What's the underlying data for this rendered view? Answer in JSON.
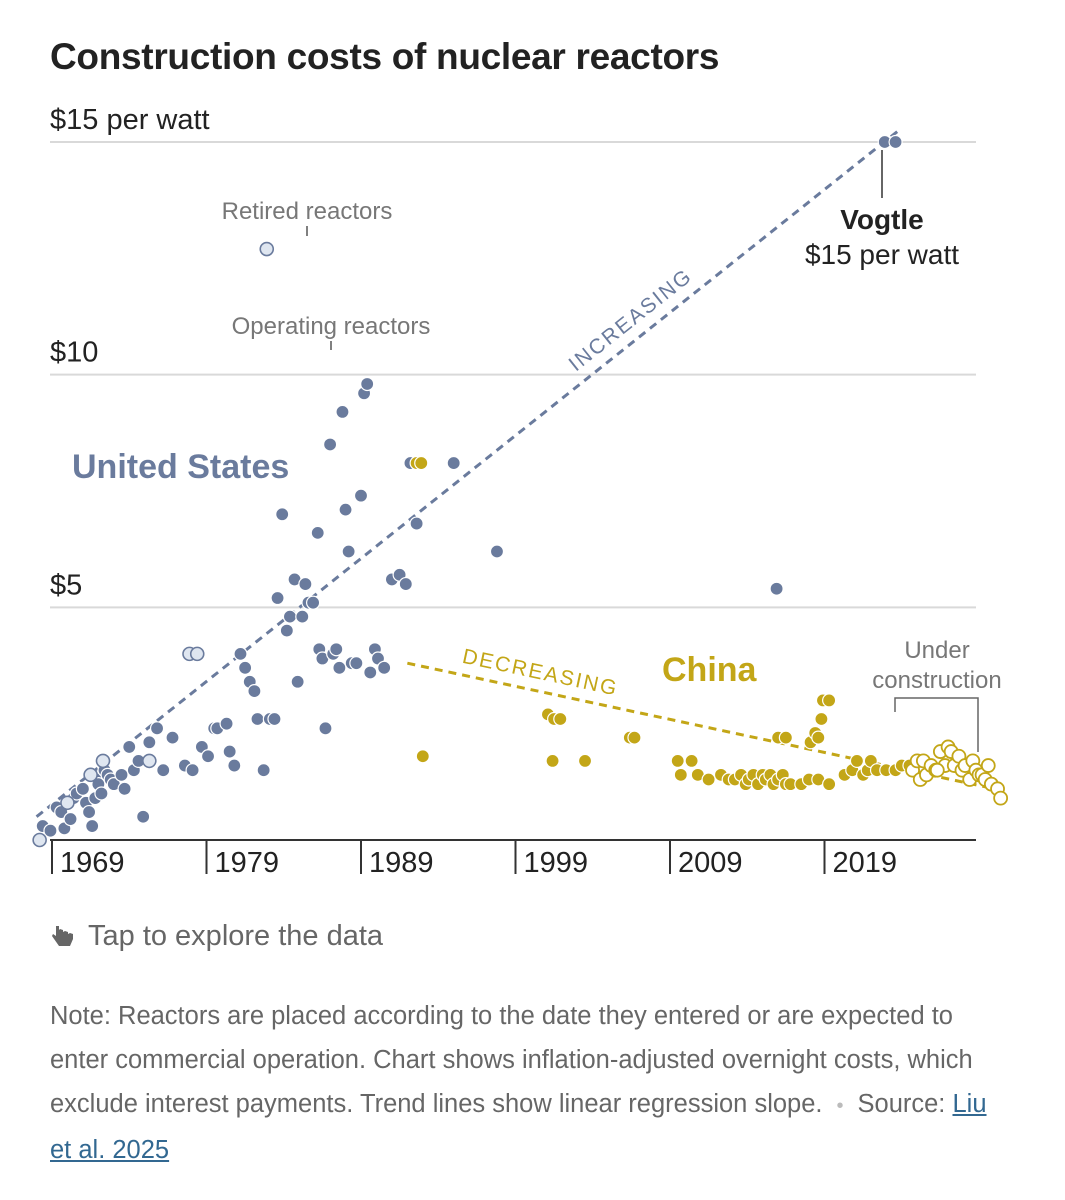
{
  "chart_data": {
    "type": "scatter",
    "title": "Construction costs of nuclear reactors",
    "xlim": [
      1966,
      2027
    ],
    "ylim": [
      0,
      15
    ],
    "x_ticks": [
      {
        "value": 1969,
        "label": "1969"
      },
      {
        "value": 1979,
        "label": "1979"
      },
      {
        "value": 1989,
        "label": "1989"
      },
      {
        "value": 1999,
        "label": "1999"
      },
      {
        "value": 2009,
        "label": "2009"
      },
      {
        "value": 2019,
        "label": "2019"
      }
    ],
    "y_ticks": [
      {
        "value": 15,
        "label": "$15 per watt"
      },
      {
        "value": 10,
        "label": "$10"
      },
      {
        "value": 5,
        "label": "$5"
      }
    ],
    "grid": true,
    "series": [
      {
        "name": "United States",
        "status": "operating",
        "color": "#6a7b9d",
        "points": [
          [
            1968.4,
            0.3
          ],
          [
            1968.9,
            0.2
          ],
          [
            1969.3,
            0.7
          ],
          [
            1969.6,
            0.6
          ],
          [
            1969.8,
            0.25
          ],
          [
            1970.2,
            0.45
          ],
          [
            1970.4,
            0.9
          ],
          [
            1970.6,
            1.0
          ],
          [
            1971.0,
            1.1
          ],
          [
            1971.2,
            0.8
          ],
          [
            1971.4,
            0.6
          ],
          [
            1971.6,
            0.3
          ],
          [
            1971.8,
            0.9
          ],
          [
            1971.9,
            1.3
          ],
          [
            1972.0,
            1.2
          ],
          [
            1972.2,
            1.0
          ],
          [
            1972.4,
            1.5
          ],
          [
            1972.6,
            1.4
          ],
          [
            1972.8,
            1.3
          ],
          [
            1973.0,
            1.2
          ],
          [
            1973.5,
            1.4
          ],
          [
            1973.7,
            1.1
          ],
          [
            1974.0,
            2.0
          ],
          [
            1974.3,
            1.5
          ],
          [
            1974.6,
            1.7
          ],
          [
            1974.9,
            0.5
          ],
          [
            1975.3,
            2.1
          ],
          [
            1975.8,
            2.4
          ],
          [
            1976.2,
            1.5
          ],
          [
            1976.8,
            2.2
          ],
          [
            1977.6,
            1.6
          ],
          [
            1978.1,
            1.5
          ],
          [
            1978.7,
            2.0
          ],
          [
            1979.1,
            1.8
          ],
          [
            1979.5,
            2.4
          ],
          [
            1979.7,
            2.4
          ],
          [
            1980.3,
            2.5
          ],
          [
            1980.5,
            1.9
          ],
          [
            1980.8,
            1.6
          ],
          [
            1981.2,
            4.0
          ],
          [
            1981.5,
            3.7
          ],
          [
            1981.8,
            3.4
          ],
          [
            1982.1,
            3.2
          ],
          [
            1982.3,
            2.6
          ],
          [
            1982.7,
            1.5
          ],
          [
            1983.1,
            2.6
          ],
          [
            1983.4,
            2.6
          ],
          [
            1983.6,
            5.2
          ],
          [
            1983.9,
            7.0
          ],
          [
            1984.2,
            4.5
          ],
          [
            1984.4,
            4.8
          ],
          [
            1984.7,
            5.6
          ],
          [
            1984.9,
            3.4
          ],
          [
            1985.2,
            4.8
          ],
          [
            1985.4,
            5.5
          ],
          [
            1985.6,
            5.1
          ],
          [
            1985.9,
            5.1
          ],
          [
            1986.2,
            6.6
          ],
          [
            1986.3,
            4.1
          ],
          [
            1986.5,
            3.9
          ],
          [
            1986.7,
            2.4
          ],
          [
            1987.0,
            8.5
          ],
          [
            1987.2,
            4.0
          ],
          [
            1987.4,
            4.1
          ],
          [
            1987.6,
            3.7
          ],
          [
            1987.8,
            9.2
          ],
          [
            1988.0,
            7.1
          ],
          [
            1988.2,
            6.2
          ],
          [
            1988.4,
            3.8
          ],
          [
            1988.7,
            3.8
          ],
          [
            1989.0,
            7.4
          ],
          [
            1989.2,
            9.6
          ],
          [
            1989.4,
            9.8
          ],
          [
            1989.6,
            3.6
          ],
          [
            1989.9,
            4.1
          ],
          [
            1990.1,
            3.9
          ],
          [
            1990.5,
            3.7
          ],
          [
            1991.0,
            5.6
          ],
          [
            1991.5,
            5.7
          ],
          [
            1991.9,
            5.5
          ],
          [
            1992.2,
            8.1
          ],
          [
            1992.6,
            6.8
          ],
          [
            1995.0,
            8.1
          ],
          [
            1997.8,
            6.2
          ],
          [
            2015.9,
            5.4
          ],
          [
            2022.9,
            15.0
          ],
          [
            2023.6,
            15.0
          ]
        ]
      },
      {
        "name": "",
        "status": "retired",
        "color": "#6a7b9d",
        "points": [
          [
            1968.2,
            0.0
          ],
          [
            1970.0,
            0.8
          ],
          [
            1971.5,
            1.4
          ],
          [
            1972.3,
            1.7
          ],
          [
            1975.3,
            1.7
          ],
          [
            1977.9,
            4.0
          ],
          [
            1978.4,
            4.0
          ],
          [
            1982.9,
            12.7
          ]
        ]
      },
      {
        "name": "China",
        "status": "operating",
        "color": "#c3a617",
        "points": [
          [
            1992.6,
            8.1
          ],
          [
            1992.9,
            8.1
          ],
          [
            1993.0,
            1.8
          ],
          [
            2001.1,
            2.7
          ],
          [
            2001.5,
            2.6
          ],
          [
            2001.9,
            2.6
          ],
          [
            2001.4,
            1.7
          ],
          [
            2003.5,
            1.7
          ],
          [
            2006.4,
            2.2
          ],
          [
            2006.7,
            2.2
          ],
          [
            2009.5,
            1.7
          ],
          [
            2009.7,
            1.4
          ],
          [
            2010.4,
            1.7
          ],
          [
            2010.8,
            1.4
          ],
          [
            2011.5,
            1.3
          ],
          [
            2012.3,
            1.4
          ],
          [
            2012.8,
            1.3
          ],
          [
            2013.2,
            1.3
          ],
          [
            2013.6,
            1.4
          ],
          [
            2013.9,
            1.2
          ],
          [
            2014.1,
            1.3
          ],
          [
            2014.4,
            1.4
          ],
          [
            2014.7,
            1.2
          ],
          [
            2015.0,
            1.4
          ],
          [
            2015.2,
            1.3
          ],
          [
            2015.5,
            1.4
          ],
          [
            2015.7,
            1.2
          ],
          [
            2016.0,
            1.3
          ],
          [
            2016.3,
            1.4
          ],
          [
            2016.5,
            1.2
          ],
          [
            2016.8,
            1.2
          ],
          [
            2016.0,
            2.2
          ],
          [
            2016.5,
            2.2
          ],
          [
            2017.5,
            1.2
          ],
          [
            2018.0,
            1.3
          ],
          [
            2018.6,
            1.3
          ],
          [
            2018.1,
            2.1
          ],
          [
            2018.4,
            2.3
          ],
          [
            2018.6,
            2.2
          ],
          [
            2018.8,
            2.6
          ],
          [
            2018.9,
            3.0
          ],
          [
            2019.3,
            3.0
          ],
          [
            2019.3,
            1.2
          ],
          [
            2020.3,
            1.4
          ],
          [
            2020.8,
            1.5
          ],
          [
            2021.1,
            1.7
          ],
          [
            2021.5,
            1.4
          ],
          [
            2021.8,
            1.5
          ],
          [
            2022.0,
            1.7
          ],
          [
            2022.4,
            1.5
          ],
          [
            2023.0,
            1.5
          ],
          [
            2023.6,
            1.5
          ],
          [
            2024.0,
            1.6
          ],
          [
            2024.5,
            1.6
          ]
        ]
      },
      {
        "name": "",
        "status": "under construction",
        "color": "#c3a617",
        "points": [
          [
            2024.7,
            1.5
          ],
          [
            2025.0,
            1.7
          ],
          [
            2025.2,
            1.3
          ],
          [
            2025.4,
            1.7
          ],
          [
            2025.6,
            1.4
          ],
          [
            2025.9,
            1.6
          ],
          [
            2026.2,
            1.5
          ],
          [
            2026.5,
            1.9
          ],
          [
            2026.8,
            1.6
          ],
          [
            2027.0,
            2.0
          ],
          [
            2027.2,
            1.9
          ],
          [
            2027.4,
            1.6
          ],
          [
            2027.7,
            1.8
          ],
          [
            2027.9,
            1.5
          ],
          [
            2028.1,
            1.6
          ],
          [
            2028.4,
            1.3
          ],
          [
            2028.6,
            1.7
          ],
          [
            2028.8,
            1.5
          ],
          [
            2029.0,
            1.4
          ],
          [
            2029.2,
            1.4
          ],
          [
            2029.4,
            1.3
          ],
          [
            2029.6,
            1.6
          ],
          [
            2029.8,
            1.2
          ],
          [
            2030.2,
            1.1
          ],
          [
            2026.3,
            1.5
          ],
          [
            2030.4,
            0.9
          ]
        ]
      }
    ],
    "trendlines": [
      {
        "label": "INCREASING",
        "series": "United States",
        "from": [
          1968,
          0.5
        ],
        "to": [
          2024,
          15.3
        ],
        "color": "#6a7b9d"
      },
      {
        "label": "DECREASING",
        "series": "China",
        "from": [
          1992,
          3.8
        ],
        "to": [
          2030,
          1.1
        ],
        "color": "#c3a617"
      }
    ],
    "annotations": {
      "retired": "Retired reactors",
      "operating": "Operating reactors",
      "us_label": "United States",
      "china_label": "China",
      "under_construction_line1": "Under",
      "under_construction_line2": "construction",
      "vogtle_name": "Vogtle",
      "vogtle_value": "$15 per watt"
    }
  },
  "interaction": {
    "tap_text": "Tap to explore the data",
    "tap_icon": "hand-pointer-icon"
  },
  "footer": {
    "note": "Note: Reactors are placed according to the date they entered or are expected to enter commercial operation. Chart shows inflation-adjusted overnight costs, which exclude interest payments. Trend lines show linear regression slope.",
    "source_label": "Source:",
    "source_link": "Liu et al. 2025"
  }
}
